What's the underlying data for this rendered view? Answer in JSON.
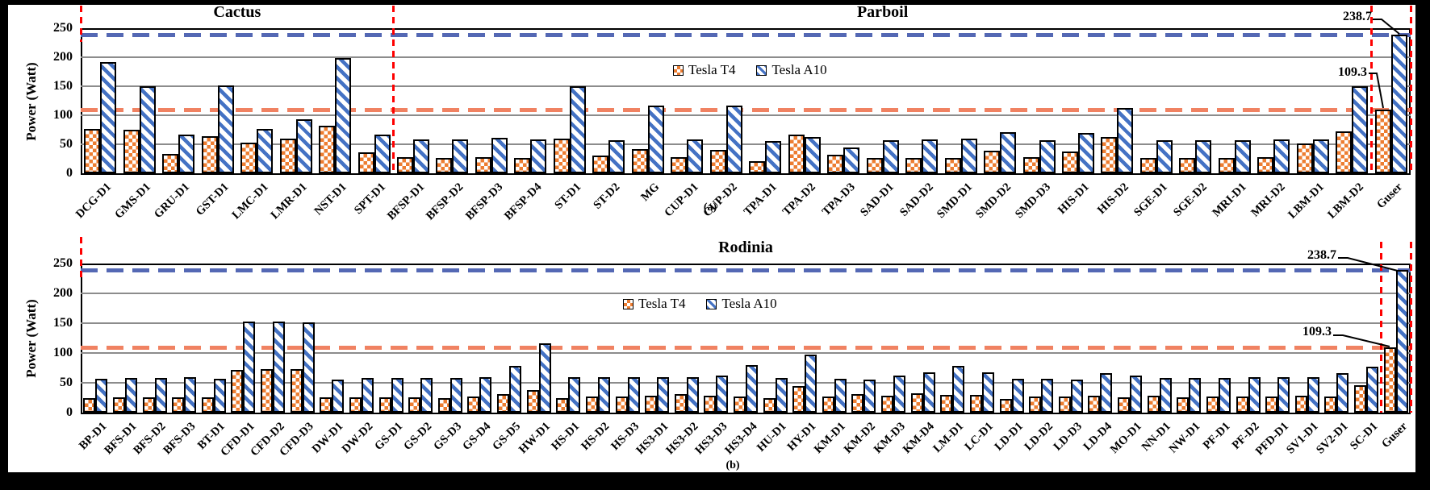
{
  "ylabel": "Power (Watt)",
  "legend": {
    "t4": "Tesla T4",
    "a10": "Tesla A10"
  },
  "annotations": {
    "a10_value": "238.7",
    "t4_value": "109.3"
  },
  "panel_labels": {
    "a": "(a)",
    "b": "(b)"
  },
  "colors": {
    "t4_fill": "#ED7D31",
    "a10_fill": "#4472C4",
    "t4_hline": "#F08262",
    "a10_hline": "#5468B4",
    "divider": "#FF0000",
    "gridline": "#8C8C8C"
  },
  "chart_data": [
    {
      "type": "bar",
      "panel": "(a)",
      "section_titles": [
        {
          "label": "Cactus",
          "from": 0,
          "to": 8
        },
        {
          "label": "Parboil",
          "from": 8,
          "to": 33
        }
      ],
      "ylabel": "Power (Watt)",
      "ylim": [
        0,
        250
      ],
      "yticks": [
        0,
        50,
        100,
        150,
        200,
        250
      ],
      "grid": true,
      "legend_position": "top-center",
      "categories": [
        "DCG-D1",
        "GMS-D1",
        "GRU-D1",
        "GST-D1",
        "LMC-D1",
        "LMR-D1",
        "NST-D1",
        "SPT-D1",
        "BFSP-D1",
        "BFSP-D2",
        "BFSP-D3",
        "BFSP-D4",
        "ST-D1",
        "ST-D2",
        "MG",
        "CUP-D1",
        "CUP-D2",
        "TPA-D1",
        "TPA-D2",
        "TPA-D3",
        "SAD-D1",
        "SAD-D2",
        "SMD-D1",
        "SMD-D2",
        "SMD-D3",
        "HIS-D1",
        "HIS-D2",
        "SGE-D1",
        "SGE-D2",
        "MRI-D1",
        "MRI-D2",
        "LBM-D1",
        "LBM-D2",
        "Guser"
      ],
      "series": [
        {
          "name": "Tesla T4",
          "values": [
            76,
            75,
            33,
            64,
            53,
            60,
            82,
            36,
            28,
            27,
            28,
            27,
            60,
            30,
            41,
            28,
            40,
            21,
            67,
            32,
            27,
            26,
            26,
            39,
            28,
            37,
            62,
            26,
            27,
            26,
            28,
            52,
            72,
            109.3
          ]
        },
        {
          "name": "Tesla A10",
          "values": [
            192,
            150,
            67,
            152,
            77,
            93,
            199,
            66,
            58,
            58,
            61,
            59,
            150,
            57,
            117,
            58,
            116,
            55,
            62,
            44,
            57,
            59,
            60,
            71,
            57,
            70,
            113,
            57,
            57,
            57,
            59,
            58,
            150,
            238.7
          ]
        }
      ],
      "hlines": [
        {
          "label": "238.7",
          "value": 238.7,
          "series": "Tesla A10"
        },
        {
          "label": "109.3",
          "value": 109.3,
          "series": "Tesla T4"
        }
      ]
    },
    {
      "type": "bar",
      "panel": "(b)",
      "section_titles": [
        {
          "label": "Rodinia",
          "from": 0,
          "to": 45
        }
      ],
      "ylabel": "Power (Watt)",
      "ylim": [
        0,
        250
      ],
      "yticks": [
        0,
        50,
        100,
        150,
        200,
        250
      ],
      "grid": true,
      "legend_position": "top-center",
      "categories": [
        "BP-D1",
        "BFS-D1",
        "BFS-D2",
        "BFS-D3",
        "BT-D1",
        "CFD-D1",
        "CFD-D2",
        "CFD-D3",
        "DW-D1",
        "DW-D2",
        "GS-D1",
        "GS-D2",
        "GS-D3",
        "GS-D4",
        "GS-D5",
        "HW-D1",
        "HS-D1",
        "HS-D2",
        "HS-D3",
        "HS3-D1",
        "HS3-D2",
        "HS3-D3",
        "HS3-D4",
        "HU-D1",
        "HY-D1",
        "KM-D1",
        "KM-D2",
        "KM-D3",
        "KM-D4",
        "LM-D1",
        "LC-D1",
        "LD-D1",
        "LD-D2",
        "LD-D3",
        "LD-D4",
        "MO-D1",
        "NN-D1",
        "NW-D1",
        "PF-D1",
        "PF-D2",
        "PFD-D1",
        "SV1-D1",
        "SV2-D1",
        "SC-D1",
        "Guser"
      ],
      "series": [
        {
          "name": "Tesla T4",
          "values": [
            25,
            26,
            26,
            26,
            26,
            71,
            73,
            73,
            26,
            26,
            26,
            26,
            25,
            27,
            31,
            38,
            24,
            27,
            27,
            28,
            31,
            28,
            27,
            25,
            44,
            27,
            31,
            28,
            33,
            30,
            30,
            23,
            27,
            27,
            28,
            26,
            28,
            26,
            27,
            27,
            27,
            28,
            27,
            46,
            109.3
          ]
        },
        {
          "name": "Tesla A10",
          "values": [
            57,
            58,
            58,
            60,
            57,
            153,
            153,
            152,
            56,
            58,
            58,
            58,
            58,
            60,
            78,
            116,
            60,
            59,
            60,
            59,
            60,
            62,
            80,
            58,
            97,
            57,
            56,
            62,
            68,
            78,
            67,
            57,
            57,
            55,
            66,
            62,
            58,
            58,
            58,
            59,
            60,
            59,
            66,
            77,
            238.7
          ]
        }
      ],
      "hlines": [
        {
          "label": "238.7",
          "value": 238.7,
          "series": "Tesla A10"
        },
        {
          "label": "109.3",
          "value": 109.3,
          "series": "Tesla T4"
        }
      ]
    }
  ]
}
